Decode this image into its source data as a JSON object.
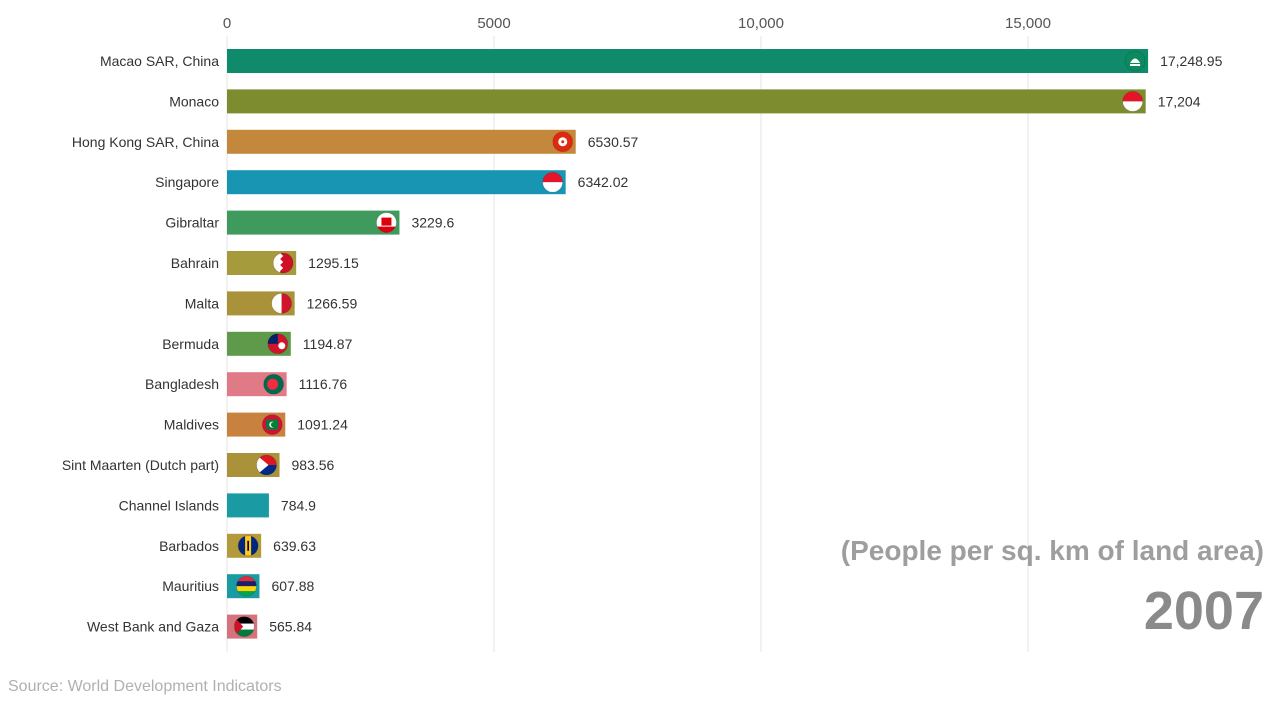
{
  "chart_data": {
    "type": "bar",
    "orientation": "horizontal",
    "xlim": [
      0,
      17500
    ],
    "x_ticks": [
      0,
      5000,
      10000,
      15000
    ],
    "x_tick_labels": [
      "0",
      "5000",
      "10,000",
      "15,000"
    ],
    "grid": true,
    "categories": [
      "Macao SAR, China",
      "Monaco",
      "Hong Kong SAR, China",
      "Singapore",
      "Gibraltar",
      "Bahrain",
      "Malta",
      "Bermuda",
      "Bangladesh",
      "Maldives",
      "Sint Maarten (Dutch part)",
      "Channel Islands",
      "Barbados",
      "Mauritius",
      "West Bank and Gaza"
    ],
    "values": [
      17248.95,
      17204,
      6530.57,
      6342.02,
      3229.6,
      1295.15,
      1266.59,
      1194.87,
      1116.76,
      1091.24,
      983.56,
      784.9,
      639.63,
      607.88,
      565.84
    ],
    "value_labels": [
      "17,248.95",
      "17,204",
      "6530.57",
      "6342.02",
      "3229.6",
      "1295.15",
      "1266.59",
      "1194.87",
      "1116.76",
      "1091.24",
      "983.56",
      "784.9",
      "639.63",
      "607.88",
      "565.84"
    ],
    "bar_colors": [
      "#0f8a6a",
      "#7d8c2e",
      "#c4883c",
      "#1895b3",
      "#3f9a5e",
      "#a59a3c",
      "#a9923a",
      "#5f9a4a",
      "#e07a86",
      "#c9813f",
      "#a9923a",
      "#1a9aa3",
      "#b39a3a",
      "#1a9aa3",
      "#d4737b"
    ],
    "flag_icons": [
      "macao-flag-icon",
      "monaco-flag-icon",
      "hong-kong-flag-icon",
      "singapore-flag-icon",
      "gibraltar-flag-icon",
      "bahrain-flag-icon",
      "malta-flag-icon",
      "bermuda-flag-icon",
      "bangladesh-flag-icon",
      "maldives-flag-icon",
      "sint-maarten-flag-icon",
      null,
      "barbados-flag-icon",
      "mauritius-flag-icon",
      "palestine-flag-icon"
    ],
    "unit_label": "(People per sq. km of land area)",
    "year": "2007",
    "source": "Source: World Development Indicators"
  }
}
